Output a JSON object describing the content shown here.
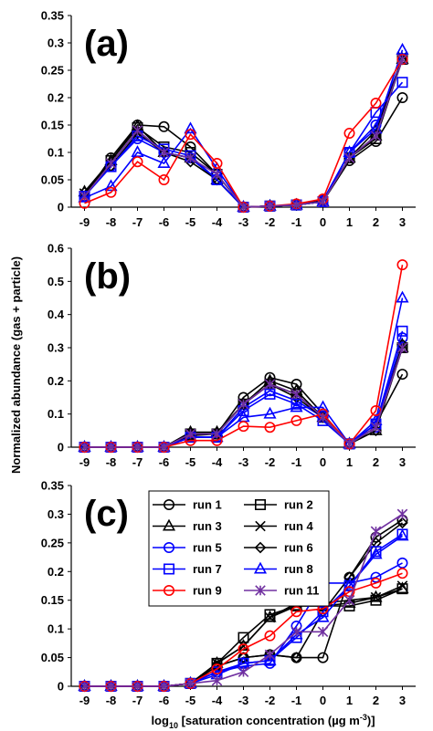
{
  "chart_data": [
    {
      "type": "line",
      "panel_label": "(a)",
      "x": [
        -9,
        -8,
        -7,
        -6,
        -5,
        -4,
        -3,
        -2,
        -1,
        0,
        1,
        2,
        3
      ],
      "ylim": [
        0,
        0.35
      ],
      "yticks": [
        "0",
        "0.05",
        "0.1",
        "0.15",
        "0.2",
        "0.25",
        "0.3",
        "0.35"
      ],
      "series": [
        {
          "name": "run 1",
          "values": [
            0.02,
            0.09,
            0.15,
            0.147,
            0.11,
            0.06,
            0,
            0.002,
            0.004,
            0.01,
            0.085,
            0.12,
            0.2
          ]
        },
        {
          "name": "run 2",
          "values": [
            0.02,
            0.085,
            0.145,
            0.11,
            0.1,
            0.06,
            0,
            0.002,
            0.004,
            0.01,
            0.09,
            0.125,
            0.27
          ]
        },
        {
          "name": "run 3",
          "values": [
            0.028,
            0.085,
            0.148,
            0.1,
            0.09,
            0.05,
            0,
            0.002,
            0.004,
            0.01,
            0.09,
            0.13,
            0.27
          ]
        },
        {
          "name": "run 4",
          "values": [
            0.025,
            0.08,
            0.14,
            0.1,
            0.09,
            0.05,
            0,
            0.002,
            0.004,
            0.01,
            0.09,
            0.13,
            0.275
          ]
        },
        {
          "name": "run 5",
          "values": [
            0.02,
            0.075,
            0.125,
            0.1,
            0.09,
            0.05,
            0,
            0.002,
            0.004,
            0.012,
            0.1,
            0.15,
            0.27
          ]
        },
        {
          "name": "run 6",
          "values": [
            0.027,
            0.075,
            0.135,
            0.1,
            0.083,
            0.05,
            0,
            0.002,
            0.004,
            0.012,
            0.09,
            0.14,
            0.27
          ]
        },
        {
          "name": "run 7",
          "values": [
            0.02,
            0.074,
            0.13,
            0.106,
            0.094,
            0.05,
            0,
            0.002,
            0.004,
            0.01,
            0.1,
            0.173,
            0.228
          ]
        },
        {
          "name": "run 8",
          "values": [
            0.017,
            0.038,
            0.1,
            0.08,
            0.143,
            0.07,
            0,
            0.002,
            0.004,
            0.01,
            0.1,
            0.143,
            0.287
          ]
        },
        {
          "name": "run 9",
          "values": [
            0.007,
            0.027,
            0.083,
            0.05,
            0.133,
            0.08,
            0,
            0.002,
            0.006,
            0.015,
            0.135,
            0.19,
            0.27
          ]
        },
        {
          "name": "run 11",
          "values": [
            0.02,
            0.08,
            0.14,
            0.1,
            0.09,
            0.06,
            0,
            0.002,
            0.004,
            0.01,
            0.09,
            0.13,
            0.27
          ]
        }
      ]
    },
    {
      "type": "line",
      "panel_label": "(b)",
      "x": [
        -9,
        -8,
        -7,
        -6,
        -5,
        -4,
        -3,
        -2,
        -1,
        0,
        1,
        2,
        3
      ],
      "ylim": [
        0,
        0.6
      ],
      "yticks": [
        "0",
        "0.1",
        "0.2",
        "0.3",
        "0.4",
        "0.5",
        "0.6"
      ],
      "ylabel": "Normalized abundance (gas + particle)",
      "series": [
        {
          "name": "run 1",
          "values": [
            0,
            0,
            0,
            0,
            0.035,
            0.04,
            0.15,
            0.21,
            0.19,
            0.1,
            0.01,
            0.07,
            0.22
          ]
        },
        {
          "name": "run 2",
          "values": [
            0,
            0,
            0,
            0,
            0.04,
            0.04,
            0.13,
            0.19,
            0.16,
            0.09,
            0.01,
            0.06,
            0.3
          ]
        },
        {
          "name": "run 3",
          "values": [
            0,
            0,
            0,
            0,
            0.045,
            0.045,
            0.13,
            0.2,
            0.17,
            0.09,
            0.01,
            0.05,
            0.3
          ]
        },
        {
          "name": "run 4",
          "values": [
            0,
            0,
            0,
            0,
            0.04,
            0.04,
            0.13,
            0.19,
            0.16,
            0.09,
            0.01,
            0.06,
            0.31
          ]
        },
        {
          "name": "run 5",
          "values": [
            0,
            0,
            0,
            0,
            0.03,
            0.03,
            0.12,
            0.17,
            0.14,
            0.09,
            0.01,
            0.06,
            0.33
          ]
        },
        {
          "name": "run 6",
          "values": [
            0,
            0,
            0,
            0,
            0.04,
            0.04,
            0.13,
            0.19,
            0.15,
            0.09,
            0.01,
            0.05,
            0.31
          ]
        },
        {
          "name": "run 7",
          "values": [
            0,
            0,
            0,
            0,
            0.03,
            0.03,
            0.11,
            0.16,
            0.13,
            0.08,
            0.01,
            0.07,
            0.35
          ]
        },
        {
          "name": "run 8",
          "values": [
            0,
            0,
            0,
            0,
            0.03,
            0.03,
            0.09,
            0.1,
            0.12,
            0.12,
            0.01,
            0.08,
            0.45
          ]
        },
        {
          "name": "run 9",
          "values": [
            0,
            0,
            0,
            0,
            0.02,
            0.02,
            0.063,
            0.06,
            0.08,
            0.1,
            0.01,
            0.11,
            0.55
          ]
        },
        {
          "name": "run 11",
          "values": [
            0,
            0,
            0,
            0,
            0.04,
            0.04,
            0.13,
            0.19,
            0.16,
            0.09,
            0.01,
            0.06,
            0.3
          ]
        }
      ]
    },
    {
      "type": "line",
      "panel_label": "(c)",
      "x": [
        -9,
        -8,
        -7,
        -6,
        -5,
        -4,
        -3,
        -2,
        -1,
        0,
        1,
        2,
        3
      ],
      "xticks": [
        "-9",
        "-8",
        "-7",
        "-6",
        "-5",
        "-4",
        "-3",
        "-2",
        "-1",
        "0",
        "1",
        "2",
        "3"
      ],
      "ylim": [
        0,
        0.35
      ],
      "yticks": [
        "0",
        "0.05",
        "0.1",
        "0.15",
        "0.2",
        "0.25",
        "0.3",
        "0.35"
      ],
      "xlabel_parts": [
        "log",
        "10",
        " [saturation concentration (µg m",
        "-3",
        ")]"
      ],
      "legend_placement": "top-left",
      "series": [
        {
          "name": "run 1",
          "values": [
            0,
            0,
            0,
            0,
            0.005,
            0.035,
            0.05,
            0.055,
            0.05,
            0.05,
            0.19,
            0.26,
            0.29
          ]
        },
        {
          "name": "run 2",
          "values": [
            0,
            0,
            0,
            0,
            0.005,
            0.04,
            0.085,
            0.125,
            0.14,
            0.14,
            0.14,
            0.15,
            0.17
          ]
        },
        {
          "name": "run 3",
          "values": [
            0,
            0,
            0,
            0,
            0.005,
            0.04,
            0.07,
            0.12,
            0.14,
            0.14,
            0.145,
            0.155,
            0.17
          ]
        },
        {
          "name": "run 4",
          "values": [
            0,
            0,
            0,
            0,
            0.005,
            0.04,
            0.07,
            0.12,
            0.145,
            0.145,
            0.15,
            0.155,
            0.175
          ]
        },
        {
          "name": "run 5",
          "values": [
            0,
            0,
            0,
            0,
            0.005,
            0.025,
            0.035,
            0.04,
            0.105,
            0.18,
            0.18,
            0.19,
            0.215
          ]
        },
        {
          "name": "run 6",
          "values": [
            0,
            0,
            0,
            0,
            0.005,
            0.035,
            0.05,
            0.055,
            0.05,
            0.13,
            0.19,
            0.25,
            0.285
          ]
        },
        {
          "name": "run 7",
          "values": [
            0,
            0,
            0,
            0,
            0.005,
            0.025,
            0.04,
            0.045,
            0.085,
            0.13,
            0.175,
            0.235,
            0.265
          ]
        },
        {
          "name": "run 8",
          "values": [
            0,
            0,
            0,
            0,
            0.005,
            0.02,
            0.04,
            0.045,
            0.09,
            0.12,
            0.175,
            0.23,
            0.262
          ]
        },
        {
          "name": "run 9",
          "values": [
            0,
            0,
            0,
            0,
            0.005,
            0.03,
            0.065,
            0.088,
            0.13,
            0.135,
            0.165,
            0.18,
            0.197
          ]
        },
        {
          "name": "run 11",
          "values": [
            0,
            0,
            0,
            0,
            0.005,
            0.01,
            0.025,
            0.055,
            0.095,
            0.095,
            0.15,
            0.27,
            0.3
          ]
        }
      ]
    }
  ],
  "series_styles": [
    {
      "color": "#000000",
      "marker": "circle"
    },
    {
      "color": "#000000",
      "marker": "square"
    },
    {
      "color": "#000000",
      "marker": "triangle"
    },
    {
      "color": "#000000",
      "marker": "x"
    },
    {
      "color": "#0000ff",
      "marker": "circle"
    },
    {
      "color": "#000000",
      "marker": "diamond"
    },
    {
      "color": "#0000ff",
      "marker": "square"
    },
    {
      "color": "#0000ff",
      "marker": "triangle"
    },
    {
      "color": "#ff0000",
      "marker": "circle"
    },
    {
      "color": "#7030a0",
      "marker": "asterisk"
    }
  ]
}
